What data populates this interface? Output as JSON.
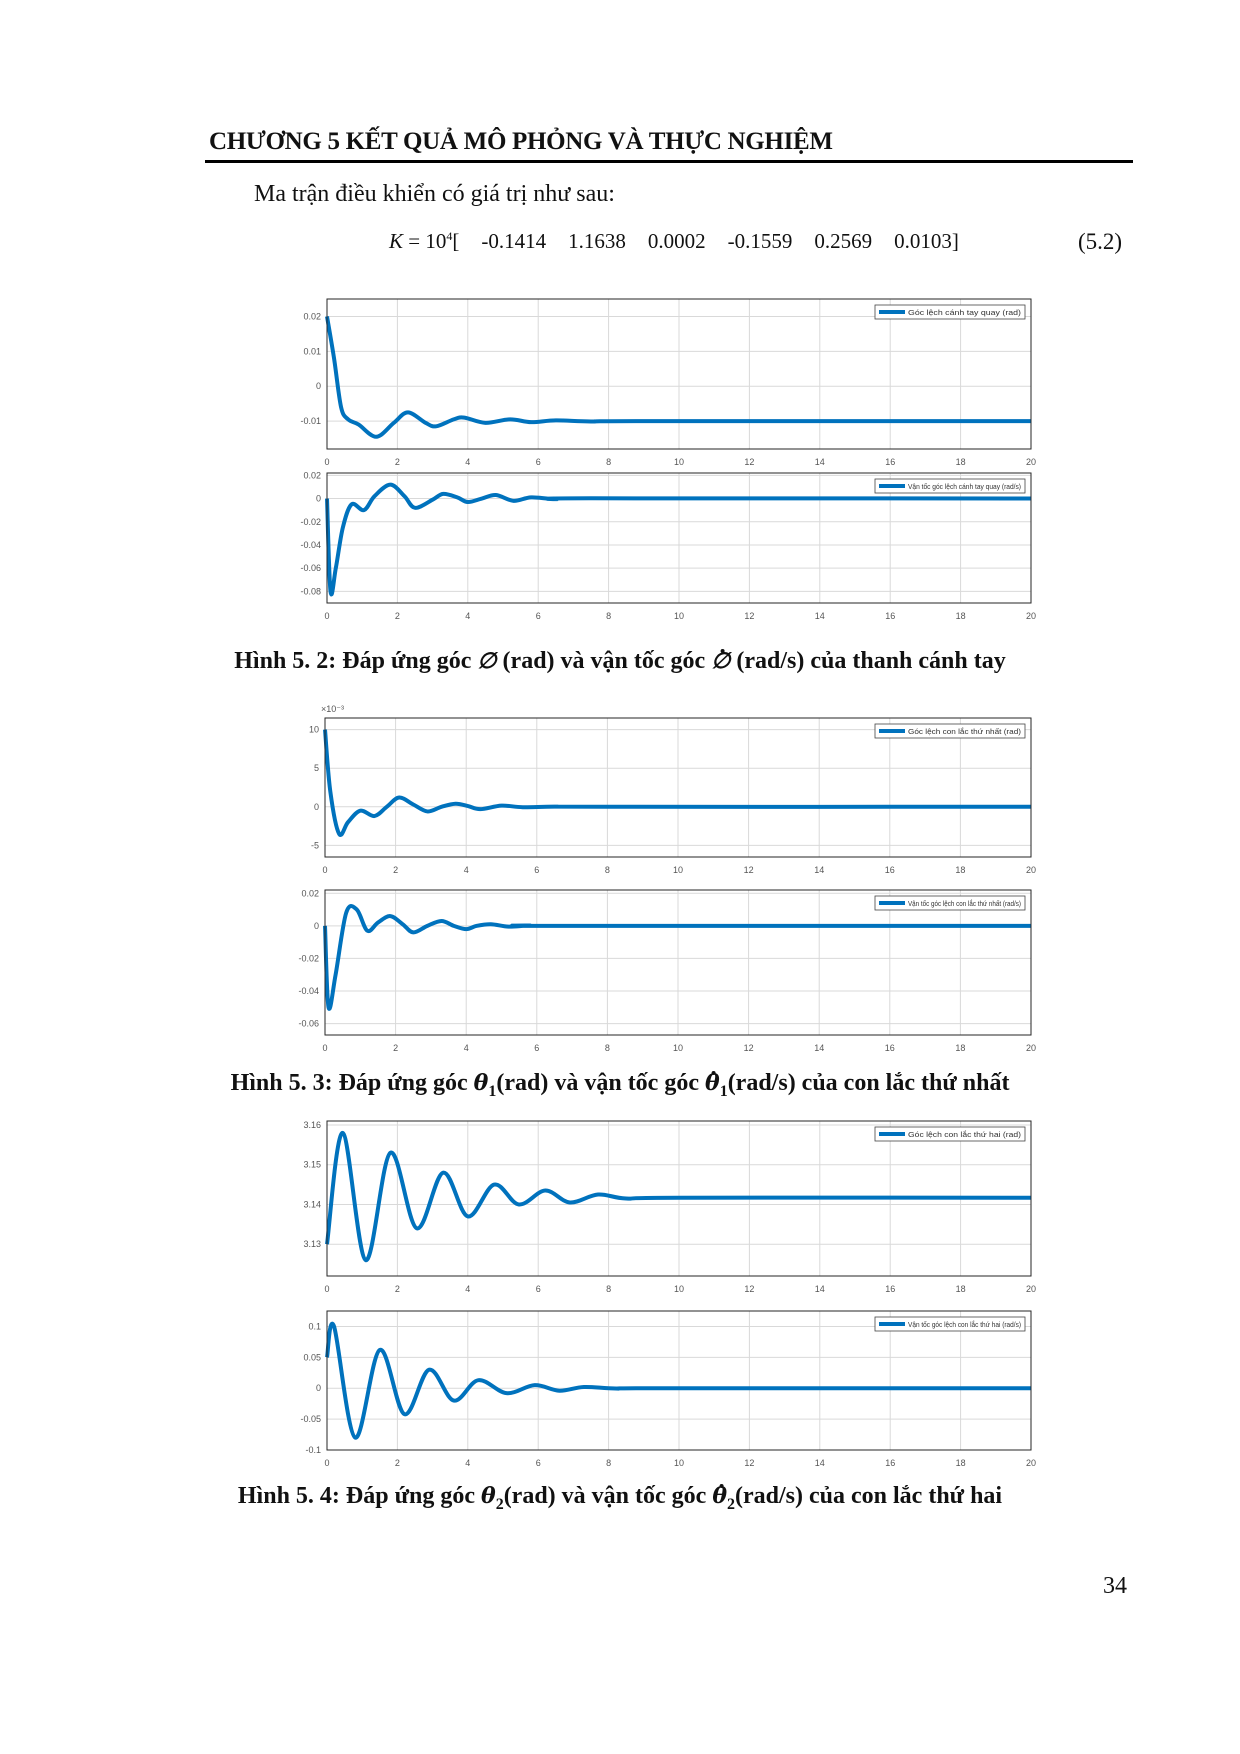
{
  "header": {
    "chapter_title": "CHƯƠNG 5 KẾT QUẢ MÔ PHỎNG VÀ THỰC NGHIỆM"
  },
  "intro_text": "Ma trận điều khiển có giá trị như sau:",
  "equation": {
    "lhs": "K",
    "eq": " = 10",
    "exp": "4",
    "open": "[",
    "values": [
      "-0.1414",
      "1.1638",
      "0.0002",
      "-0.1559",
      "0.2569",
      "0.0103"
    ],
    "close": "]",
    "number": "(5.2)"
  },
  "captions": [
    {
      "prefix": "Hình 5. 2: Đáp ứng góc ",
      "sym": "∅",
      "sub": "",
      "mid": " (rad) và vận tốc góc ",
      "sym2": "∅",
      "sub2": "",
      "suffix": " (rad/s) của thanh cánh tay"
    },
    {
      "prefix": "Hình 5. 3: Đáp ứng góc ",
      "sym": "θ",
      "sub": "1",
      "mid": "(rad) và vận tốc góc ",
      "sym2": "θ",
      "sub2": "1",
      "suffix": "(rad/s) của con lắc thứ nhất"
    },
    {
      "prefix": "Hình 5. 4: Đáp ứng góc ",
      "sym": "θ",
      "sub": "2",
      "mid": "(rad) và vận tốc góc ",
      "sym2": "θ",
      "sub2": "2",
      "suffix": "(rad/s) của con lắc thứ hai"
    }
  ],
  "page_number": "34",
  "colors": {
    "line": "#0072bd",
    "grid": "#d9d9d9",
    "axis": "#262626"
  },
  "chart_data": [
    {
      "type": "line",
      "legend": "Góc lệch cánh tay quay (rad)",
      "legend_placement": "top-right",
      "grid": true,
      "xlim": [
        0,
        20
      ],
      "xticks": [
        0,
        2,
        4,
        6,
        8,
        10,
        12,
        14,
        16,
        18,
        20
      ],
      "ylim": [
        -0.018,
        0.025
      ],
      "yticks": [
        0.02,
        0.01,
        0,
        -0.01
      ],
      "ytick_labels": [
        "0.02",
        "0.01",
        "0",
        "-0.01"
      ],
      "exponent": "",
      "x": [
        0,
        0.2,
        0.4,
        0.6,
        0.9,
        1.4,
        1.9,
        2.3,
        2.8,
        3.1,
        3.6,
        3.9,
        4.5,
        5.2,
        5.8,
        6.5,
        7.5,
        9,
        20
      ],
      "y": [
        0.02,
        0.008,
        -0.006,
        -0.0095,
        -0.011,
        -0.0145,
        -0.0105,
        -0.0075,
        -0.0105,
        -0.0115,
        -0.0095,
        -0.009,
        -0.0105,
        -0.0095,
        -0.0103,
        -0.0098,
        -0.0101,
        -0.01,
        -0.01
      ]
    },
    {
      "type": "line",
      "legend": "Vận tốc góc lệch cánh tay quay (rad/s)",
      "legend_placement": "top-right",
      "grid": true,
      "xlim": [
        0,
        20
      ],
      "xticks": [
        0,
        2,
        4,
        6,
        8,
        10,
        12,
        14,
        16,
        18,
        20
      ],
      "ylim": [
        -0.09,
        0.022
      ],
      "yticks": [
        0.02,
        0,
        -0.02,
        -0.04,
        -0.06,
        -0.08
      ],
      "ytick_labels": [
        "0.02",
        "0",
        "-0.02",
        "-0.04",
        "-0.06",
        "-0.08"
      ],
      "exponent": "",
      "x": [
        0,
        0.1,
        0.25,
        0.45,
        0.7,
        1.05,
        1.35,
        1.8,
        2.2,
        2.5,
        3.0,
        3.3,
        3.7,
        4.0,
        4.4,
        4.8,
        5.3,
        5.8,
        6.5,
        7.5,
        20
      ],
      "y": [
        0,
        -0.08,
        -0.06,
        -0.025,
        -0.005,
        -0.01,
        0.002,
        0.012,
        0.002,
        -0.008,
        -0.001,
        0.004,
        0.001,
        -0.003,
        0.0,
        0.003,
        -0.002,
        0.001,
        -0.0005,
        0.0002,
        0
      ]
    },
    {
      "type": "line",
      "legend": "Góc lệch con lắc thứ nhất (rad)",
      "legend_placement": "top-right",
      "grid": true,
      "xlim": [
        0,
        20
      ],
      "xticks": [
        0,
        2,
        4,
        6,
        8,
        10,
        12,
        14,
        16,
        18,
        20
      ],
      "ylim": [
        -6.5,
        11.5
      ],
      "yticks": [
        10,
        5,
        0,
        -5
      ],
      "ytick_labels": [
        "10",
        "5",
        "0",
        "-5"
      ],
      "exponent": "×10⁻³",
      "x": [
        0,
        0.15,
        0.4,
        0.65,
        1.0,
        1.4,
        1.75,
        2.1,
        2.5,
        2.9,
        3.3,
        3.7,
        4.05,
        4.4,
        5.0,
        5.6,
        6.5,
        8,
        20
      ],
      "y": [
        10,
        2,
        -3.5,
        -2,
        -0.5,
        -1.2,
        0,
        1.2,
        0.3,
        -0.6,
        0,
        0.4,
        0.1,
        -0.3,
        0.15,
        -0.05,
        0.02,
        0,
        0
      ]
    },
    {
      "type": "line",
      "legend": "Vận tốc góc lệch con lắc thứ nhất (rad/s)",
      "legend_placement": "top-right",
      "grid": true,
      "xlim": [
        0,
        20
      ],
      "xticks": [
        0,
        2,
        4,
        6,
        8,
        10,
        12,
        14,
        16,
        18,
        20
      ],
      "ylim": [
        -0.067,
        0.022
      ],
      "yticks": [
        0.02,
        0,
        -0.02,
        -0.04,
        -0.06
      ],
      "ytick_labels": [
        "0.02",
        "0",
        "-0.02",
        "-0.04",
        "-0.06"
      ],
      "exponent": "",
      "x": [
        0,
        0.1,
        0.3,
        0.6,
        0.9,
        1.2,
        1.5,
        1.85,
        2.2,
        2.5,
        2.9,
        3.3,
        3.65,
        4.0,
        4.3,
        4.7,
        5.2,
        5.8,
        6.5,
        20
      ],
      "y": [
        0,
        -0.05,
        -0.03,
        0.008,
        0.01,
        -0.003,
        0.002,
        0.006,
        0.001,
        -0.004,
        0.0,
        0.003,
        0.0,
        -0.002,
        0.0,
        0.001,
        -0.0005,
        0.0002,
        0,
        0
      ]
    },
    {
      "type": "line",
      "legend": "Góc lệch con lắc thứ hai (rad)",
      "legend_placement": "top-right",
      "grid": true,
      "xlim": [
        0,
        20
      ],
      "xticks": [
        0,
        2,
        4,
        6,
        8,
        10,
        12,
        14,
        16,
        18,
        20
      ],
      "ylim": [
        3.122,
        3.161
      ],
      "yticks": [
        3.16,
        3.15,
        3.14,
        3.13
      ],
      "ytick_labels": [
        "3.16",
        "3.15",
        "3.14",
        "3.13"
      ],
      "exponent": "",
      "x": [
        0,
        0.45,
        1.1,
        1.8,
        2.55,
        3.3,
        4.0,
        4.75,
        5.45,
        6.2,
        6.9,
        7.7,
        8.5,
        10,
        20
      ],
      "y": [
        3.13,
        3.158,
        3.126,
        3.153,
        3.134,
        3.148,
        3.137,
        3.145,
        3.14,
        3.1435,
        3.1405,
        3.1425,
        3.1415,
        3.1417,
        3.1417
      ]
    },
    {
      "type": "line",
      "legend": "Vận tốc góc lệch con lắc thứ hai (rad/s)",
      "legend_placement": "top-right",
      "grid": true,
      "xlim": [
        0,
        20
      ],
      "xticks": [
        0,
        2,
        4,
        6,
        8,
        10,
        12,
        14,
        16,
        18,
        20
      ],
      "ylim": [
        -0.1,
        0.125
      ],
      "yticks": [
        0.1,
        0.05,
        0,
        -0.05,
        -0.1
      ],
      "ytick_labels": [
        "0.1",
        "0.05",
        "0",
        "-0.05",
        "-0.1"
      ],
      "exponent": "",
      "x": [
        0,
        0.2,
        0.8,
        1.5,
        2.2,
        2.9,
        3.6,
        4.3,
        5.1,
        5.9,
        6.6,
        7.3,
        8.2,
        9.5,
        20
      ],
      "y": [
        0.05,
        0.1,
        -0.08,
        0.062,
        -0.042,
        0.03,
        -0.02,
        0.013,
        -0.008,
        0.005,
        -0.004,
        0.002,
        -0.0005,
        0,
        0
      ]
    }
  ]
}
